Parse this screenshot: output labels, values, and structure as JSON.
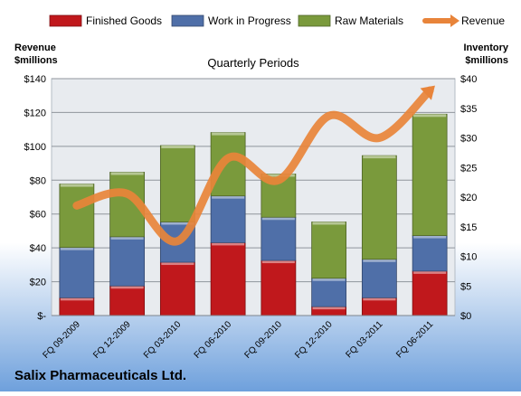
{
  "colors": {
    "finished_goods": "#c0181c",
    "work_in_progress": "#4f6fa8",
    "raw_materials": "#7a9a3c",
    "revenue": "#e8843a",
    "background_top": "#ffffff",
    "background_bottom": "#6ea0dc"
  },
  "chart_data": {
    "type": "bar",
    "stacked": true,
    "title": "Quarterly Periods",
    "company": "Salix Pharmaceuticals Ltd.",
    "left_axis_title": [
      "Revenue",
      "$millions"
    ],
    "right_axis_title": [
      "Inventory",
      "$millions"
    ],
    "categories": [
      "FQ 09-2009",
      "FQ 12-2009",
      "FQ 03-2010",
      "FQ 06-2010",
      "FQ 09-2010",
      "FQ 12-2010",
      "FQ 03-2011",
      "FQ 06-2011"
    ],
    "left_ylim": [
      0,
      140
    ],
    "left_ticks": [
      "$-",
      "$20",
      "$40",
      "$60",
      "$80",
      "$100",
      "$120",
      "$140"
    ],
    "right_ylim": [
      0,
      40
    ],
    "right_ticks": [
      "$0",
      "$5",
      "$10",
      "$15",
      "$20",
      "$25",
      "$30",
      "$35",
      "$40"
    ],
    "grid": true,
    "legend_position": "top",
    "series": [
      {
        "name": "Finished Goods",
        "axis": "right",
        "color_key": "finished_goods",
        "values": [
          3,
          5,
          9,
          12.3,
          9.3,
          1.5,
          3,
          7.5
        ]
      },
      {
        "name": "Work in Progress",
        "axis": "right",
        "color_key": "work_in_progress",
        "values": [
          8.5,
          8.3,
          6.8,
          7.9,
          7.3,
          4.8,
          6.5,
          6
        ]
      },
      {
        "name": "Raw Materials",
        "axis": "right",
        "color_key": "raw_materials",
        "values": [
          10.7,
          10.9,
          12.9,
          10.7,
          7.3,
          9.5,
          17.5,
          20.5
        ]
      },
      {
        "name": "Revenue",
        "axis": "left",
        "type": "line",
        "color_key": "revenue",
        "values": [
          65,
          72,
          44,
          93,
          80,
          118,
          105,
          133
        ]
      }
    ]
  }
}
